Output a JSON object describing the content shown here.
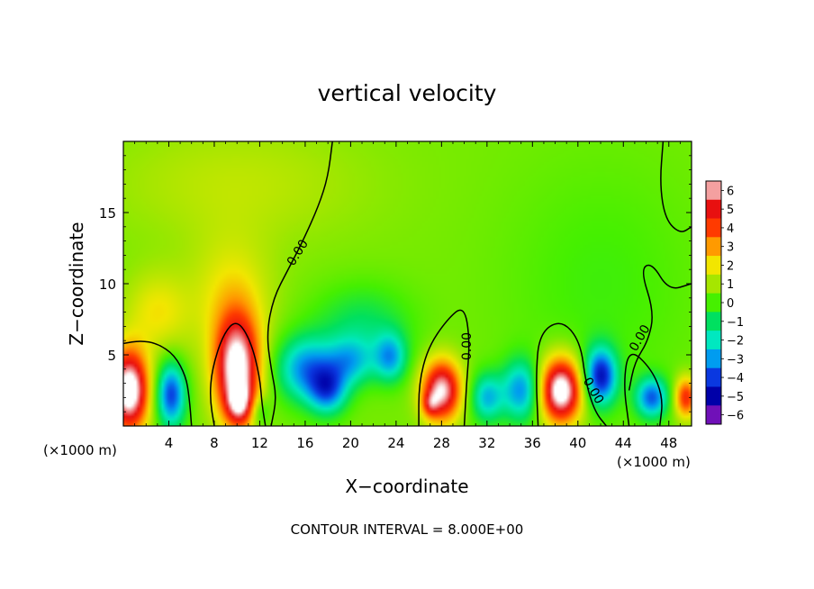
{
  "chart_data": {
    "type": "heatmap",
    "title": "vertical velocity",
    "xlabel": "X−coordinate",
    "ylabel": "Z−coordinate",
    "x_unit_left": "(×1000 m)",
    "x_unit_right": "(×1000 m)",
    "xlim": [
      0,
      50
    ],
    "ylim": [
      0,
      20
    ],
    "x_ticks": [
      4,
      8,
      12,
      16,
      20,
      24,
      28,
      32,
      36,
      40,
      44,
      48
    ],
    "y_ticks": [
      5,
      10,
      15
    ],
    "colorbar": {
      "ticks": [
        6,
        5,
        4,
        3,
        2,
        1,
        0,
        -1,
        -2,
        -3,
        -4,
        -5,
        -6
      ],
      "tick_labels": [
        "6",
        "5",
        "4",
        "3",
        "2",
        "1",
        "0",
        "−1",
        "−2",
        "−3",
        "−4",
        "−5",
        "−6"
      ],
      "colors": [
        "#f4a0a0",
        "#e81010",
        "#ff3a00",
        "#ff9a00",
        "#f2e600",
        "#a6e600",
        "#46f000",
        "#00e060",
        "#00e8c0",
        "#009cf0",
        "#0a38e0",
        "#0000a8",
        "#7010b8"
      ]
    },
    "contour_label": "0.00",
    "contour_interval_text": "CONTOUR INTERVAL = 8.000E+00",
    "background_value": 0.5,
    "features": [
      {
        "x": 0.5,
        "z": 2.5,
        "sx": 1.2,
        "sz": 2.0,
        "value": 7
      },
      {
        "x": 4.2,
        "z": 2.2,
        "sx": 0.9,
        "sz": 1.6,
        "value": -4.5
      },
      {
        "x": 10.0,
        "z": 4.0,
        "sx": 1.4,
        "sz": 2.6,
        "value": 6.5
      },
      {
        "x": 10.2,
        "z": 1.5,
        "sx": 0.8,
        "sz": 1.0,
        "value": 3
      },
      {
        "x": 9.5,
        "z": 9.0,
        "sx": 2.5,
        "sz": 3.0,
        "value": 1.5
      },
      {
        "x": 3.0,
        "z": 8.0,
        "sx": 2.0,
        "sz": 2.0,
        "value": 1.5
      },
      {
        "x": 12.0,
        "z": 1.0,
        "sx": 0.6,
        "sz": 0.8,
        "value": -1.5
      },
      {
        "x": 16.0,
        "z": 4.0,
        "sx": 1.8,
        "sz": 1.6,
        "value": -3.5
      },
      {
        "x": 18.0,
        "z": 2.5,
        "sx": 1.2,
        "sz": 1.2,
        "value": -3.5
      },
      {
        "x": 20.0,
        "z": 4.5,
        "sx": 1.5,
        "sz": 1.2,
        "value": -2.5
      },
      {
        "x": 23.5,
        "z": 4.8,
        "sx": 1.0,
        "sz": 1.2,
        "value": -3
      },
      {
        "x": 21.0,
        "z": 7.0,
        "sx": 3.0,
        "sz": 2.0,
        "value": -1.5
      },
      {
        "x": 28.0,
        "z": 2.5,
        "sx": 1.2,
        "sz": 1.5,
        "value": 6
      },
      {
        "x": 27.0,
        "z": 1.5,
        "sx": 0.5,
        "sz": 0.6,
        "value": 2
      },
      {
        "x": 32.0,
        "z": 2.0,
        "sx": 1.0,
        "sz": 1.2,
        "value": -3
      },
      {
        "x": 35.0,
        "z": 2.5,
        "sx": 1.2,
        "sz": 1.5,
        "value": -3.5
      },
      {
        "x": 38.5,
        "z": 2.5,
        "sx": 1.3,
        "sz": 1.6,
        "value": 7
      },
      {
        "x": 42.0,
        "z": 3.5,
        "sx": 1.0,
        "sz": 1.4,
        "value": -5
      },
      {
        "x": 46.5,
        "z": 2.0,
        "sx": 1.0,
        "sz": 1.0,
        "value": -4
      },
      {
        "x": 49.5,
        "z": 2.0,
        "sx": 0.7,
        "sz": 1.0,
        "value": 4
      },
      {
        "x": 42.0,
        "z": 10.0,
        "sx": 6.0,
        "sz": 6.0,
        "value": -0.6
      },
      {
        "x": 10.0,
        "z": 17.0,
        "sx": 8.0,
        "sz": 3.0,
        "value": 0.8
      }
    ],
    "contours": [
      {
        "points": [
          [
            0.0,
            5.8
          ],
          [
            1.5,
            6.0
          ],
          [
            3.0,
            5.8
          ],
          [
            4.5,
            5.0
          ],
          [
            5.5,
            3.5
          ],
          [
            5.8,
            2.0
          ],
          [
            6.0,
            0.0
          ]
        ]
      },
      {
        "points": [
          [
            8.0,
            0.0
          ],
          [
            7.6,
            2.0
          ],
          [
            7.8,
            4.0
          ],
          [
            8.8,
            6.5
          ],
          [
            10.0,
            7.5
          ],
          [
            11.2,
            6.0
          ],
          [
            12.0,
            3.5
          ],
          [
            12.2,
            1.5
          ],
          [
            12.5,
            0.0
          ]
        ]
      },
      {
        "points": [
          [
            13.0,
            0.0
          ],
          [
            13.5,
            2.0
          ],
          [
            13.0,
            4.0
          ],
          [
            12.6,
            6.5
          ],
          [
            13.2,
            9.0
          ],
          [
            14.5,
            11.0
          ],
          [
            15.8,
            13.0
          ],
          [
            17.2,
            15.5
          ],
          [
            18.0,
            17.5
          ],
          [
            18.4,
            20.0
          ]
        ]
      },
      {
        "points": [
          [
            26.0,
            0.0
          ],
          [
            26.0,
            3.0
          ],
          [
            26.8,
            5.5
          ],
          [
            28.5,
            7.5
          ],
          [
            30.0,
            8.5
          ],
          [
            30.5,
            6.0
          ],
          [
            30.2,
            3.0
          ],
          [
            30.0,
            0.0
          ]
        ]
      },
      {
        "points": [
          [
            36.5,
            0.0
          ],
          [
            36.3,
            3.5
          ],
          [
            36.6,
            6.5
          ],
          [
            38.5,
            7.5
          ],
          [
            40.2,
            6.0
          ],
          [
            40.7,
            3.0
          ],
          [
            41.5,
            1.0
          ],
          [
            42.5,
            0.0
          ]
        ]
      },
      {
        "points": [
          [
            44.5,
            2.5
          ],
          [
            45.0,
            4.5
          ],
          [
            46.2,
            6.0
          ],
          [
            46.7,
            8.0
          ],
          [
            45.5,
            11.0
          ],
          [
            46.5,
            11.5
          ],
          [
            48.0,
            9.5
          ],
          [
            50.0,
            10.0
          ]
        ]
      },
      {
        "points": [
          [
            47.2,
            0.0
          ],
          [
            47.5,
            2.0
          ],
          [
            46.5,
            4.0
          ],
          [
            44.5,
            5.5
          ],
          [
            44.0,
            3.0
          ],
          [
            44.5,
            0.0
          ]
        ]
      },
      {
        "points": [
          [
            47.5,
            20.0
          ],
          [
            47.2,
            17.0
          ],
          [
            47.7,
            14.5
          ],
          [
            49.0,
            13.5
          ],
          [
            50.0,
            14.0
          ]
        ]
      }
    ],
    "contour_labels": [
      {
        "x": 15.3,
        "z": 12.2,
        "text": "0.00",
        "angle": -58
      },
      {
        "x": 30.2,
        "z": 5.6,
        "text": "0.00",
        "angle": -90
      },
      {
        "x": 41.4,
        "z": 2.5,
        "text": "0.00",
        "angle": 60
      },
      {
        "x": 45.4,
        "z": 6.2,
        "text": "0.00",
        "angle": -60
      }
    ]
  }
}
